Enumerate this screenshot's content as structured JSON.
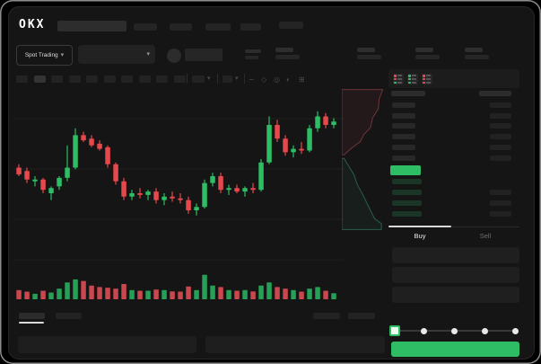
{
  "app": {
    "logo": "OKX"
  },
  "header": {
    "product_selector": {
      "label": "Spot Trading"
    }
  },
  "trade_panel": {
    "tabs": {
      "buy": "Buy",
      "sell": "Sell"
    }
  },
  "ui_colors": {
    "up_green": "#2ebd64",
    "down_red": "#e5484d",
    "accent_button": "#2ebd64",
    "panel_bg": "#151515"
  },
  "orderbook": {
    "ask_rows": 6,
    "bid_rows": 4,
    "bid_right_bars": [
      false,
      true,
      true,
      true
    ],
    "last_price_highlight": "green"
  },
  "chart_data": {
    "type": "candlestick",
    "title": "",
    "xlabel": "",
    "ylabel": "",
    "axes_labeled": false,
    "grid_y": [
      0.163,
      0.458,
      0.753,
      0.99
    ],
    "colors": {
      "up": "#2ebd64",
      "down": "#e5484d",
      "vol_up": "#27a057",
      "vol_down": "#c9474e"
    },
    "candles": [
      [
        55,
        57,
        50,
        51
      ],
      [
        53,
        55,
        46,
        48
      ],
      [
        47,
        50,
        44,
        48
      ],
      [
        48,
        49,
        40,
        42
      ],
      [
        40,
        44,
        36,
        43
      ],
      [
        44,
        50,
        42,
        49
      ],
      [
        49,
        68,
        47,
        55
      ],
      [
        55,
        78,
        54,
        74
      ],
      [
        74,
        76,
        70,
        71
      ],
      [
        72,
        74,
        67,
        68
      ],
      [
        69,
        71,
        65,
        66
      ],
      [
        67,
        68,
        55,
        57
      ],
      [
        57,
        58,
        45,
        47
      ],
      [
        47,
        49,
        36,
        38
      ],
      [
        38,
        42,
        36,
        40
      ],
      [
        40,
        43,
        37,
        39
      ],
      [
        39,
        42,
        36,
        41
      ],
      [
        41,
        43,
        34,
        36
      ],
      [
        36,
        40,
        33,
        38
      ],
      [
        38,
        41,
        35,
        37
      ],
      [
        37,
        40,
        34,
        36
      ],
      [
        36,
        38,
        28,
        30
      ],
      [
        30,
        34,
        27,
        32
      ],
      [
        32,
        48,
        31,
        46
      ],
      [
        46,
        52,
        44,
        50
      ],
      [
        50,
        52,
        40,
        42
      ],
      [
        42,
        45,
        39,
        43
      ],
      [
        43,
        45,
        40,
        41
      ],
      [
        41,
        44,
        38,
        43
      ],
      [
        43,
        46,
        40,
        42
      ],
      [
        42,
        60,
        41,
        58
      ],
      [
        58,
        85,
        57,
        80
      ],
      [
        80,
        83,
        70,
        72
      ],
      [
        72,
        74,
        62,
        64
      ],
      [
        64,
        68,
        61,
        66
      ],
      [
        66,
        70,
        63,
        65
      ],
      [
        65,
        80,
        64,
        78
      ],
      [
        78,
        88,
        76,
        85
      ],
      [
        85,
        87,
        78,
        80
      ],
      [
        80,
        84,
        78,
        82
      ]
    ],
    "volume": [
      30,
      25,
      18,
      28,
      22,
      35,
      55,
      65,
      60,
      45,
      40,
      38,
      35,
      50,
      30,
      28,
      28,
      32,
      30,
      26,
      25,
      42,
      30,
      80,
      45,
      40,
      30,
      28,
      30,
      26,
      45,
      55,
      40,
      35,
      30,
      25,
      35,
      40,
      28,
      20
    ],
    "depth": {
      "asks": [
        [
          0.93,
          0.01
        ],
        [
          0.85,
          0.05
        ],
        [
          0.83,
          0.09
        ],
        [
          0.7,
          0.13
        ],
        [
          0.65,
          0.17
        ],
        [
          0.5,
          0.2
        ],
        [
          0.42,
          0.23
        ],
        [
          0.2,
          0.26
        ],
        [
          0.05,
          0.285
        ]
      ],
      "bids": [
        [
          0.05,
          0.3
        ],
        [
          0.15,
          0.33
        ],
        [
          0.28,
          0.37
        ],
        [
          0.35,
          0.41
        ],
        [
          0.47,
          0.45
        ],
        [
          0.6,
          0.5
        ],
        [
          0.68,
          0.53
        ],
        [
          0.75,
          0.555
        ],
        [
          0.9,
          0.575
        ]
      ],
      "ask_line": "#6e3438",
      "bid_line": "#2a5d50",
      "ask_fill": "rgba(180,70,75,0.10)",
      "bid_fill": "rgba(45,120,100,0.10)"
    }
  }
}
